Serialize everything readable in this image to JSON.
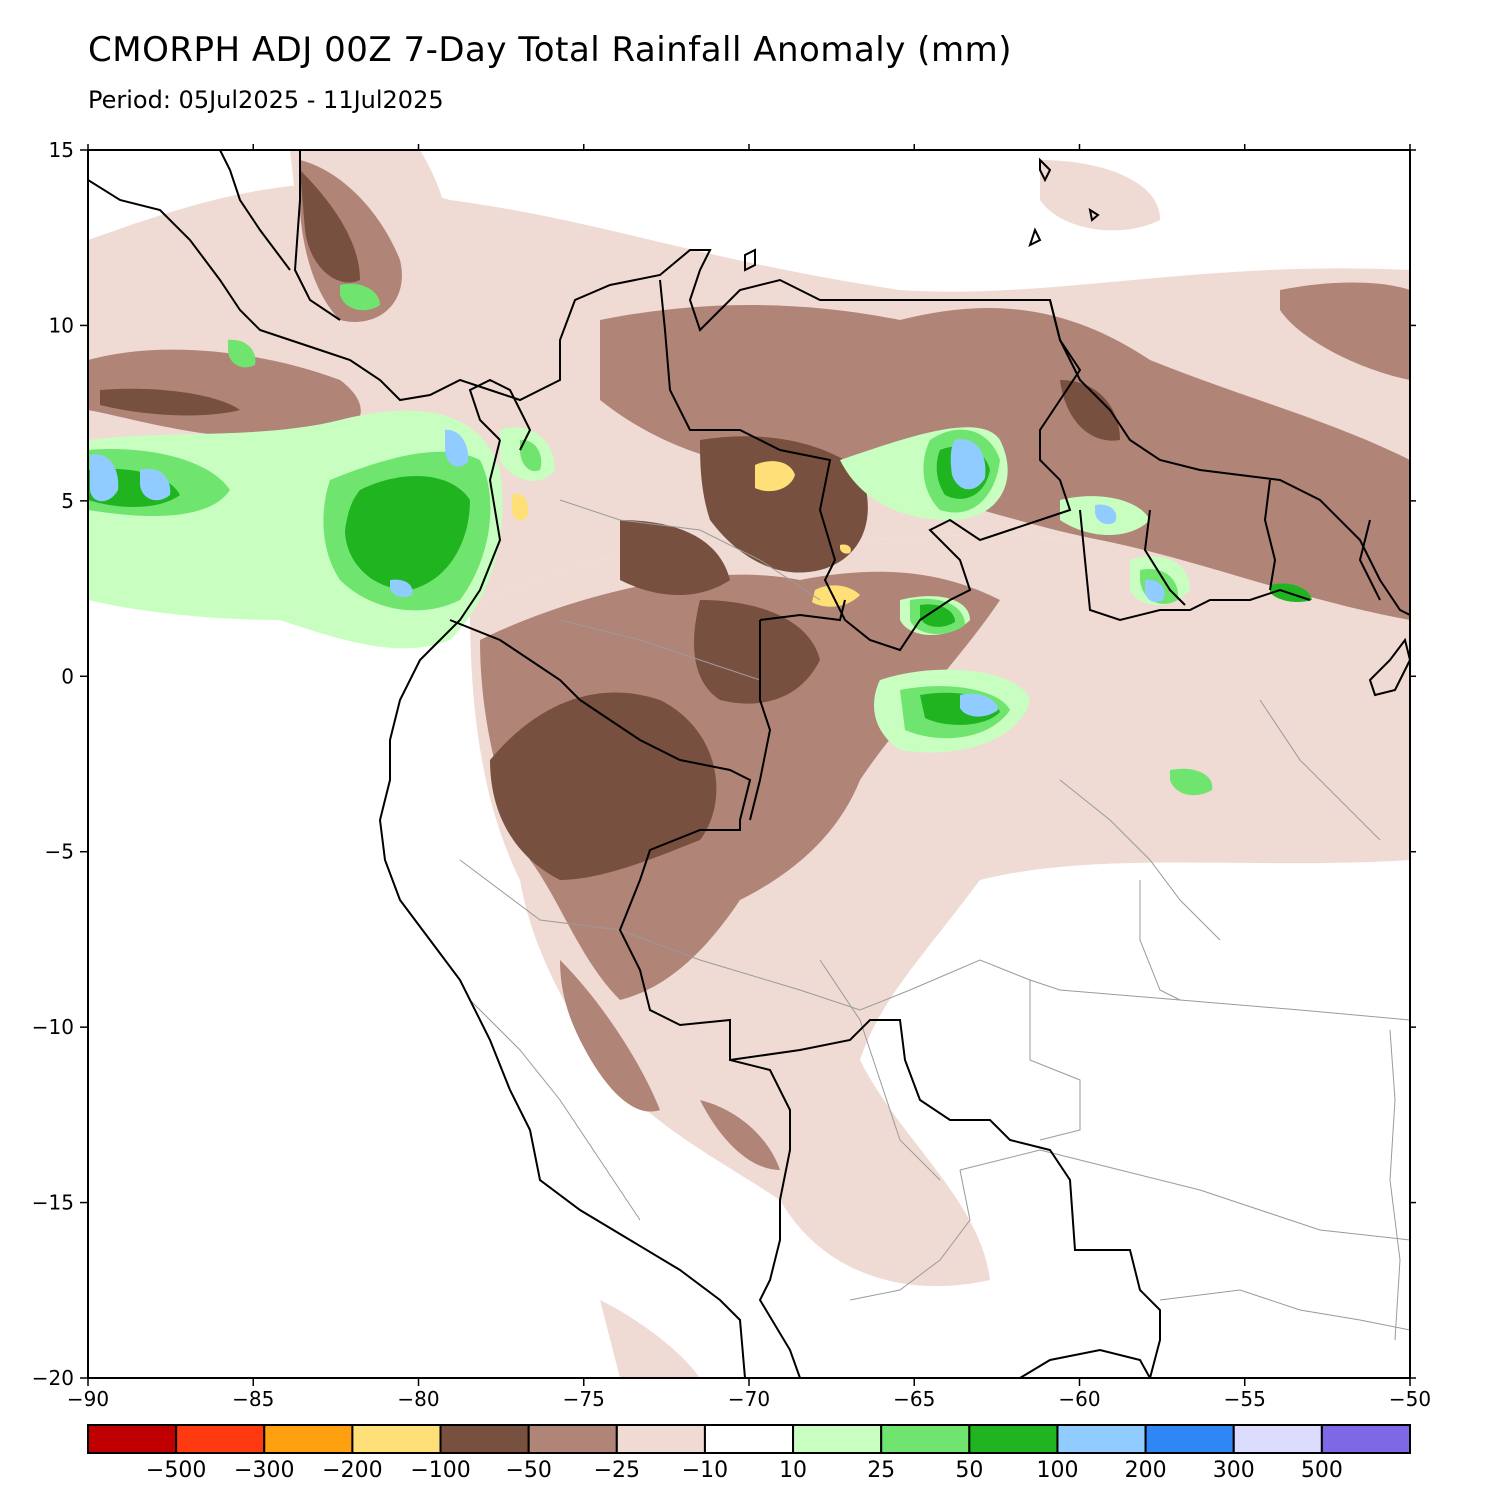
{
  "header": {
    "title": "CMORPH ADJ 00Z 7-Day Total Rainfall Anomaly (mm)",
    "period": "Period: 05Jul2025 - 11Jul2025"
  },
  "map": {
    "lon_range": [
      -90,
      -50
    ],
    "lat_range": [
      -20,
      15
    ],
    "lon_ticks": [
      -90,
      -85,
      -80,
      -75,
      -70,
      -65,
      -60,
      -55,
      -50
    ],
    "lat_ticks": [
      15,
      10,
      5,
      0,
      -5,
      -10,
      -15,
      -20
    ],
    "lon_tick_labels": [
      "−90",
      "−85",
      "−80",
      "−75",
      "−70",
      "−65",
      "−60",
      "−55",
      "−50"
    ],
    "lat_tick_labels": [
      "15",
      "10",
      "5",
      "0",
      "−5",
      "−10",
      "−15",
      "−20"
    ]
  },
  "legend": {
    "colors": [
      "#c00000",
      "#ff3a10",
      "#ffa010",
      "#ffe078",
      "#77503f",
      "#b18478",
      "#efdbd3",
      "#ffffff",
      "#c8ffc0",
      "#6fe56f",
      "#20b520",
      "#90ccff",
      "#2f86f5",
      "#dcdcff",
      "#7f68e6"
    ],
    "labels": [
      "−500",
      "−300",
      "−200",
      "−100",
      "−50",
      "−25",
      "−10",
      "10",
      "25",
      "50",
      "100",
      "200",
      "300",
      "500"
    ]
  }
}
